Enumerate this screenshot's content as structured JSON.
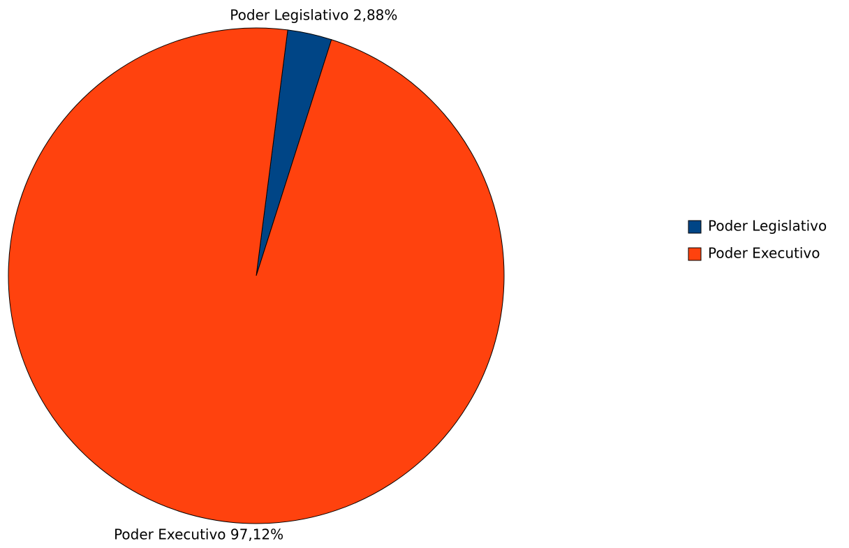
{
  "chart_data": {
    "type": "pie",
    "categories": [
      "Poder Legislativo",
      "Poder Executivo"
    ],
    "values": [
      2.88,
      97.12
    ],
    "value_labels": [
      "Poder Legislativo 2,88%",
      "Poder Executivo 97,12%"
    ],
    "colors": [
      "#004586",
      "#ff420e"
    ],
    "legend": "right"
  }
}
